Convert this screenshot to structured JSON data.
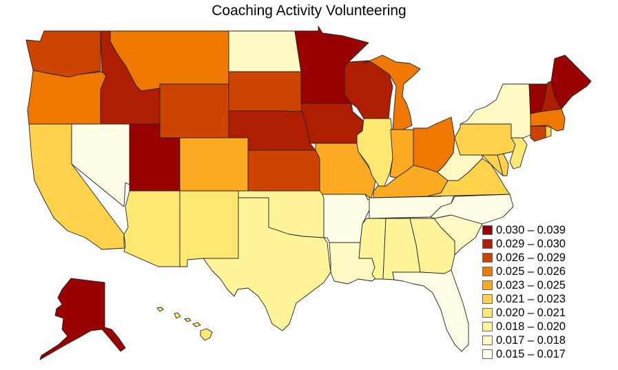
{
  "title": "Coaching Activity Volunteering",
  "chart_data": {
    "type": "choropleth",
    "title": "Coaching Activity Volunteering",
    "legend": [
      {
        "label": "0.030 – 0.039",
        "color": "#990000",
        "min": 0.03,
        "max": 0.039
      },
      {
        "label": "0.029 – 0.030",
        "color": "#B01E00",
        "min": 0.029,
        "max": 0.03
      },
      {
        "label": "0.026 – 0.029",
        "color": "#CC4400",
        "min": 0.026,
        "max": 0.029
      },
      {
        "label": "0.025 – 0.026",
        "color": "#EE7800",
        "min": 0.025,
        "max": 0.026
      },
      {
        "label": "0.023 – 0.025",
        "color": "#FBAA22",
        "min": 0.023,
        "max": 0.025
      },
      {
        "label": "0.021 – 0.023",
        "color": "#FED24A",
        "min": 0.021,
        "max": 0.023
      },
      {
        "label": "0.020 – 0.021",
        "color": "#FEE873",
        "min": 0.02,
        "max": 0.021
      },
      {
        "label": "0.018 – 0.020",
        "color": "#FFF598",
        "min": 0.018,
        "max": 0.02
      },
      {
        "label": "0.017 – 0.018",
        "color": "#FFF9C4",
        "min": 0.017,
        "max": 0.018
      },
      {
        "label": "0.015 – 0.017",
        "color": "#FFFDE6",
        "min": 0.015,
        "max": 0.017
      }
    ],
    "states": {
      "WA": "0.026 – 0.029",
      "OR": "0.025 – 0.026",
      "CA": "0.021 – 0.023",
      "NV": "0.015 – 0.017",
      "ID": "0.029 – 0.030",
      "MT": "0.025 – 0.026",
      "WY": "0.026 – 0.029",
      "UT": "0.030 – 0.039",
      "CO": "0.023 – 0.025",
      "AZ": "0.020 – 0.021",
      "NM": "0.020 – 0.021",
      "ND": "0.017 – 0.018",
      "SD": "0.026 – 0.029",
      "NE": "0.029 – 0.030",
      "KS": "0.026 – 0.029",
      "OK": "0.018 – 0.020",
      "TX": "0.018 – 0.020",
      "MN": "0.030 – 0.039",
      "IA": "0.029 – 0.030",
      "MO": "0.023 – 0.025",
      "AR": "0.015 – 0.017",
      "LA": "0.017 – 0.018",
      "WI": "0.029 – 0.030",
      "IL": "0.020 – 0.021",
      "MI": "0.025 – 0.026",
      "IN": "0.023 – 0.025",
      "OH": "0.025 – 0.026",
      "KY": "0.023 – 0.025",
      "TN": "0.015 – 0.017",
      "MS": "0.018 – 0.020",
      "AL": "0.018 – 0.020",
      "GA": "0.018 – 0.020",
      "FL": "0.015 – 0.017",
      "SC": "0.017 – 0.018",
      "NC": "0.015 – 0.017",
      "VA": "0.021 – 0.023",
      "WV": "0.017 – 0.018",
      "PA": "0.021 – 0.023",
      "NY": "0.017 – 0.018",
      "NJ": "0.020 – 0.021",
      "DE": "0.021 – 0.023",
      "MD": "0.021 – 0.023",
      "CT": "0.026 – 0.029",
      "RI": "0.021 – 0.023",
      "MA": "0.025 – 0.026",
      "VT": "0.030 – 0.039",
      "NH": "0.029 – 0.030",
      "ME": "0.030 – 0.039",
      "AK": "0.030 – 0.039",
      "HI": "0.020 – 0.021"
    }
  }
}
